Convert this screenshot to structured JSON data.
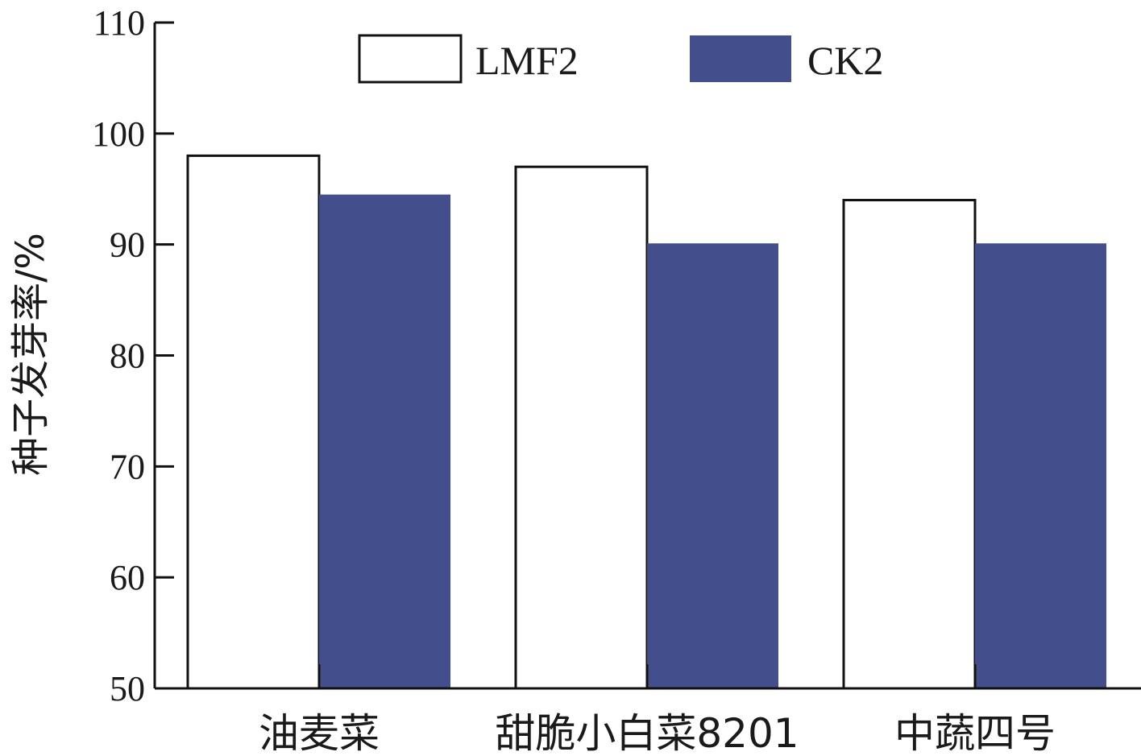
{
  "chart_data": {
    "type": "bar",
    "ylabel": "种子发芽率/%",
    "xlabel": "",
    "ylim": [
      50,
      110
    ],
    "yticks": [
      50,
      60,
      70,
      80,
      90,
      100,
      110
    ],
    "categories": [
      "油麦菜",
      "甜脆小白菜8201",
      "中蔬四号"
    ],
    "series": [
      {
        "name": "LMF2",
        "values": [
          98,
          97,
          94
        ],
        "color": "#ffffff",
        "stroke": "#111111"
      },
      {
        "name": "CK2",
        "values": [
          94.5,
          90.1,
          90.1
        ],
        "color": "#434e8c",
        "stroke": "#434e8c"
      }
    ],
    "legend_position": "top-center",
    "grid": false
  }
}
